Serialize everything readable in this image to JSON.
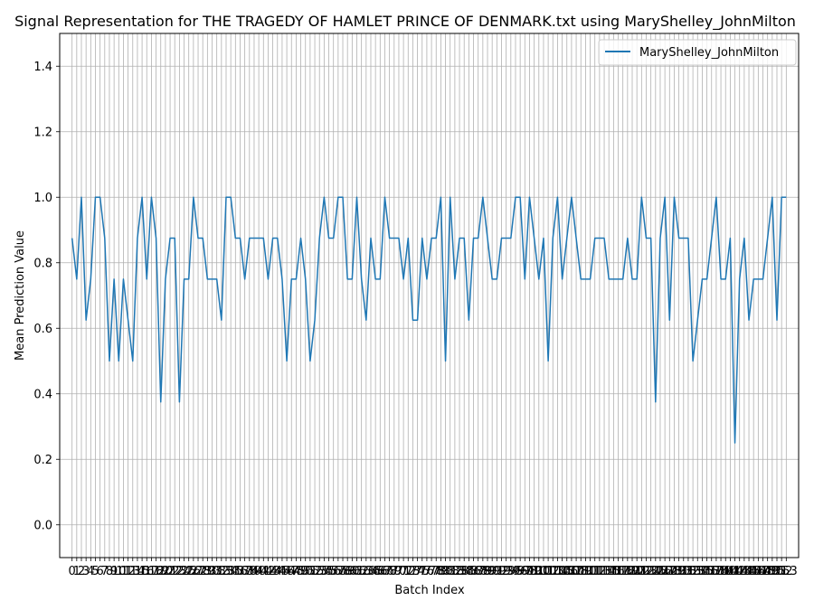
{
  "chart_data": {
    "type": "line",
    "title": "Signal Representation for THE TRAGEDY OF HAMLET PRINCE OF DENMARK.txt using MaryShelley_JohnMilton",
    "xlabel": "Batch Index",
    "ylabel": "Mean Prediction Value",
    "ylim": [
      -0.1,
      1.5
    ],
    "yticks": [
      0.0,
      0.2,
      0.4,
      0.6,
      0.8,
      1.0,
      1.2,
      1.4
    ],
    "xlim": [
      -2.65,
      155.65
    ],
    "grid": true,
    "legend": "top-right",
    "series": [
      {
        "name": "MaryShelley_JohnMilton",
        "color": "#1f77b4",
        "x": [
          0,
          1,
          2,
          3,
          4,
          5,
          6,
          7,
          8,
          9,
          10,
          11,
          12,
          13,
          14,
          15,
          16,
          17,
          18,
          19,
          20,
          21,
          22,
          23,
          24,
          25,
          26,
          27,
          28,
          29,
          30,
          31,
          32,
          33,
          34,
          35,
          36,
          37,
          38,
          39,
          40,
          41,
          42,
          43,
          44,
          45,
          46,
          47,
          48,
          49,
          50,
          51,
          52,
          53,
          54,
          55,
          56,
          57,
          58,
          59,
          60,
          61,
          62,
          63,
          64,
          65,
          66,
          67,
          68,
          69,
          70,
          71,
          72,
          73,
          74,
          75,
          76,
          77,
          78,
          79,
          80,
          81,
          82,
          83,
          84,
          85,
          86,
          87,
          88,
          89,
          90,
          91,
          92,
          93,
          94,
          95,
          96,
          97,
          98,
          99,
          100,
          101,
          102,
          103,
          104,
          105,
          106,
          107,
          108,
          109,
          110,
          111,
          112,
          113,
          114,
          115,
          116,
          117,
          118,
          119,
          120,
          121,
          122,
          123,
          124,
          125,
          126,
          127,
          128,
          129,
          130,
          131,
          132,
          133,
          134,
          135,
          136,
          137,
          138,
          139,
          140,
          141,
          142,
          143,
          144,
          145,
          146,
          147,
          148,
          149,
          150,
          151,
          152,
          153
        ],
        "values": [
          0.875,
          0.75,
          1.0,
          0.625,
          0.75,
          1.0,
          1.0,
          0.875,
          0.5,
          0.75,
          0.5,
          0.75,
          0.625,
          0.5,
          0.875,
          1.0,
          0.75,
          1.0,
          0.875,
          0.375,
          0.75,
          0.875,
          0.875,
          0.375,
          0.75,
          0.75,
          1.0,
          0.875,
          0.875,
          0.75,
          0.75,
          0.75,
          0.625,
          1.0,
          1.0,
          0.875,
          0.875,
          0.75,
          0.875,
          0.875,
          0.875,
          0.875,
          0.75,
          0.875,
          0.875,
          0.75,
          0.5,
          0.75,
          0.75,
          0.875,
          0.75,
          0.5,
          0.625,
          0.875,
          1.0,
          0.875,
          0.875,
          1.0,
          1.0,
          0.75,
          0.75,
          1.0,
          0.75,
          0.625,
          0.875,
          0.75,
          0.75,
          1.0,
          0.875,
          0.875,
          0.875,
          0.75,
          0.875,
          0.625,
          0.625,
          0.875,
          0.75,
          0.875,
          0.875,
          1.0,
          0.5,
          1.0,
          0.75,
          0.875,
          0.875,
          0.625,
          0.875,
          0.875,
          1.0,
          0.875,
          0.75,
          0.75,
          0.875,
          0.875,
          0.875,
          1.0,
          1.0,
          0.75,
          1.0,
          0.875,
          0.75,
          0.875,
          0.5,
          0.875,
          1.0,
          0.75,
          0.875,
          1.0,
          0.875,
          0.75,
          0.75,
          0.75,
          0.875,
          0.875,
          0.875,
          0.75,
          0.75,
          0.75,
          0.75,
          0.875,
          0.75,
          0.75,
          1.0,
          0.875,
          0.875,
          0.375,
          0.875,
          1.0,
          0.625,
          1.0,
          0.875,
          0.875,
          0.875,
          0.5,
          0.625,
          0.75,
          0.75,
          0.875,
          1.0,
          0.75,
          0.75,
          0.875,
          0.25,
          0.75,
          0.875,
          0.625,
          0.75,
          0.75,
          0.75,
          0.875,
          1.0,
          0.625,
          1.0,
          1.0
        ]
      }
    ]
  }
}
